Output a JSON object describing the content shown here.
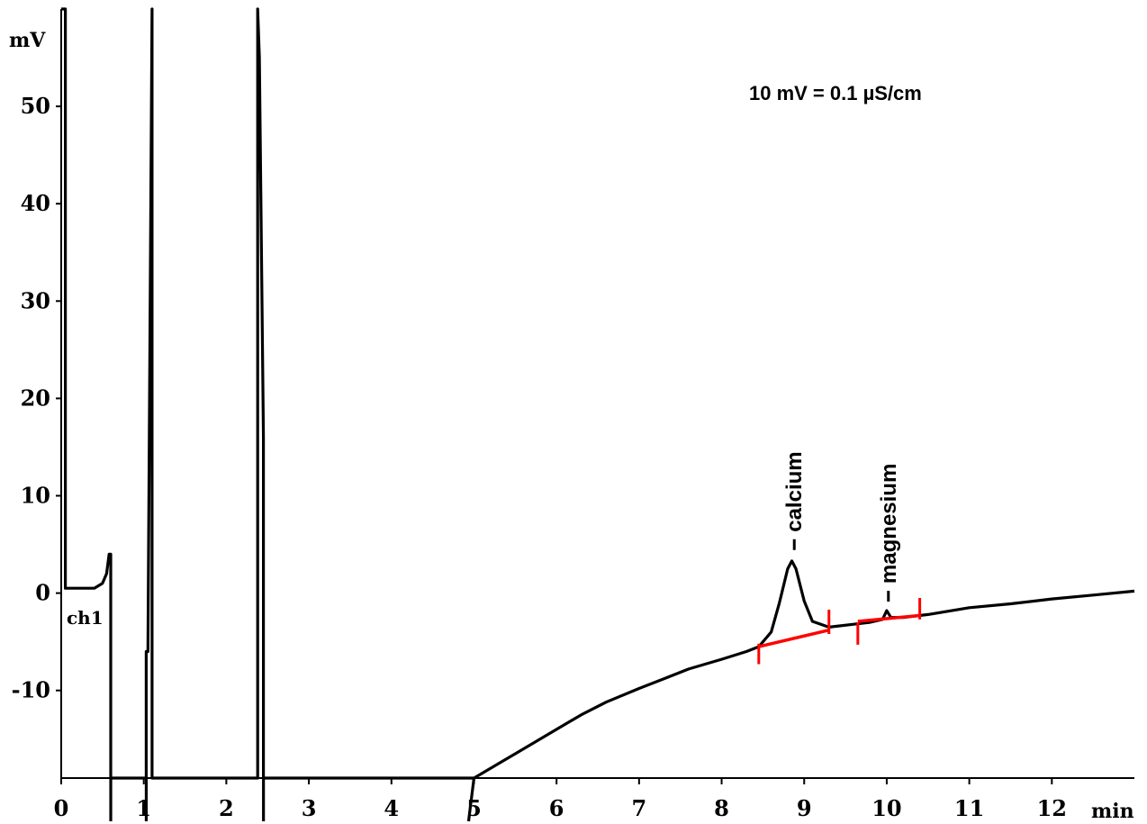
{
  "chart_data": {
    "type": "line",
    "xlabel": "min",
    "ylabel": "mV",
    "xlim": [
      0,
      13
    ],
    "ylim": [
      -19,
      60
    ],
    "x_ticks": [
      0,
      1,
      2,
      3,
      4,
      5,
      6,
      7,
      8,
      9,
      10,
      11,
      12
    ],
    "y_ticks": [
      -10,
      0,
      10,
      20,
      30,
      40,
      50
    ],
    "annotation": "10 mV = 0.1 µS/cm",
    "channel_label": "ch1",
    "grid": false,
    "series": [
      {
        "color": "#000000",
        "x": [
          0,
          0.05,
          0.05,
          0.4,
          0.5,
          0.55,
          0.58,
          0.6,
          0.6,
          0.6,
          1.03,
          1.03,
          1.05,
          1.1,
          1.1,
          2.38,
          2.38,
          2.4,
          2.45,
          2.45,
          5.0,
          5.1,
          5.3,
          5.5,
          5.8,
          6.0,
          6.3,
          6.6,
          7.0,
          7.3,
          7.6,
          8.0,
          8.3,
          8.45,
          8.6,
          8.7,
          8.8,
          8.85,
          8.9,
          9.0,
          9.1,
          9.3,
          9.6,
          9.8,
          9.95,
          10.0,
          10.05,
          10.2,
          10.5,
          11.0,
          11.5,
          12.0,
          12.5,
          13.0
        ],
        "y": [
          60,
          60,
          0.5,
          0.5,
          1,
          2,
          4,
          4,
          -19,
          -19,
          -19,
          -6,
          -6,
          60,
          -19,
          -19,
          60,
          55,
          16,
          -19,
          -19,
          -18.5,
          -17.5,
          -16.5,
          -15,
          -14,
          -12.5,
          -11.2,
          -9.8,
          -8.8,
          -7.8,
          -6.8,
          -6.0,
          -5.5,
          -4.0,
          -1.0,
          2.5,
          3.3,
          2.5,
          -0.8,
          -2.9,
          -3.5,
          -3.2,
          -3.0,
          -2.7,
          -1.8,
          -2.5,
          -2.5,
          -2.2,
          -1.5,
          -1.1,
          -0.6,
          -0.2,
          0.2
        ]
      }
    ],
    "baselines": [
      {
        "color": "#ff0000",
        "x": [
          8.45,
          9.3
        ],
        "y": [
          -5.5,
          -3.8
        ]
      },
      {
        "color": "#ff0000",
        "x": [
          9.65,
          10.4
        ],
        "y": [
          -2.9,
          -2.3
        ]
      }
    ],
    "baseline_marks": [
      {
        "x": 8.45,
        "y1": -7.3,
        "y2": -5.2
      },
      {
        "x": 9.3,
        "y1": -4.2,
        "y2": -1.7
      },
      {
        "x": 9.65,
        "y1": -5.3,
        "y2": -3.0
      },
      {
        "x": 10.4,
        "y1": -2.7,
        "y2": -0.5
      }
    ],
    "peaks": [
      {
        "label": "calcium",
        "x": 8.88,
        "y": 3.5
      },
      {
        "label": "magnesium",
        "x": 10.02,
        "y": -1.8
      }
    ]
  }
}
